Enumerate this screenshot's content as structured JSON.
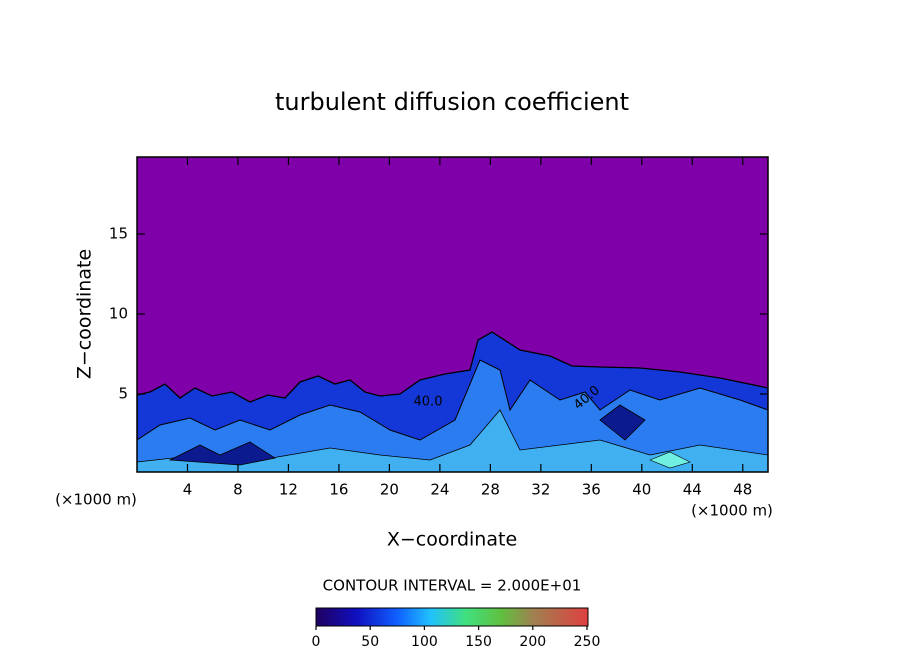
{
  "chart_data": {
    "type": "contour",
    "title": "turbulent diffusion coefficient",
    "x_label": "X−coordinate",
    "y_label": "Z−coordinate",
    "axis_unit_labels": [
      "(×1000 m)",
      "(×1000 m)"
    ],
    "xlim": [
      0,
      50
    ],
    "xticks": [
      4,
      8,
      12,
      16,
      20,
      24,
      28,
      32,
      36,
      40,
      44,
      48
    ],
    "ylim": [
      0,
      20
    ],
    "yticks": [
      5,
      10,
      15
    ],
    "background_color": "#7f00a8",
    "contour_labels": [
      "40.0",
      "40.0"
    ],
    "contour_interval_label": "CONTOUR INTERVAL = 2.000E+01",
    "colorbar": {
      "lim": [
        0,
        250
      ],
      "ticks": [
        0,
        50,
        100,
        150,
        200,
        250
      ]
    }
  }
}
